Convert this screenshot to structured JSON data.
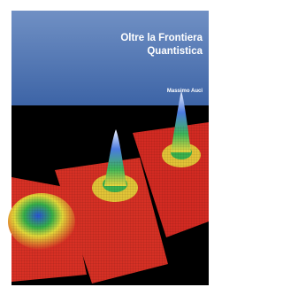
{
  "cover": {
    "title_lines": [
      "Oltre la Frontiera",
      "Quantistica"
    ],
    "author": "Massimo Auci"
  }
}
